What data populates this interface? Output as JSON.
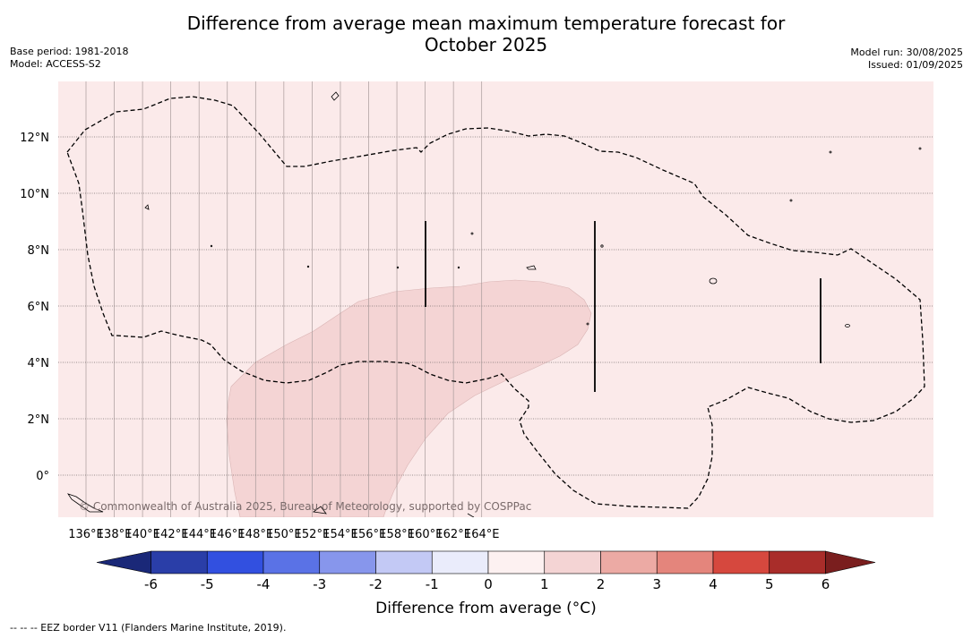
{
  "title": {
    "line1": "Difference from average mean maximum temperature forecast for",
    "line2": "October 2025"
  },
  "meta": {
    "base_period": "Base period: 1981-2018",
    "model": "Model: ACCESS-S2",
    "model_run": "Model run: 30/08/2025",
    "issued": "Issued: 01/09/2025"
  },
  "map": {
    "background_color": "#fbeaea",
    "anomaly_region_color": "#f4d4d4",
    "lon_ticks": [
      "136°E",
      "138°E",
      "140°E",
      "142°E",
      "144°E",
      "146°E",
      "148°E",
      "150°E",
      "152°E",
      "154°E",
      "156°E",
      "158°E",
      "160°E",
      "162°E",
      "164°E"
    ],
    "lat_ticks": [
      "12°N",
      "10°N",
      "8°N",
      "6°N",
      "4°N",
      "2°N",
      "0°"
    ],
    "copyright": "© Commonwealth of Australia 2025, Bureau of Meteorology, supported by COSPPac"
  },
  "colorbar": {
    "label": "Difference from average (°C)",
    "ticks": [
      "-6",
      "-5",
      "-4",
      "-3",
      "-2",
      "-1",
      "0",
      "1",
      "2",
      "3",
      "4",
      "5",
      "6"
    ],
    "colors": [
      "#2a3ea8",
      "#3250e0",
      "#5a72e6",
      "#8796ec",
      "#c3c9f5",
      "#eaecfb",
      "#fdf1f1",
      "#f4d4d4",
      "#ecaaa4",
      "#e4857c",
      "#d6483e",
      "#a92d2a"
    ],
    "low_extend_color": "#1a2878",
    "high_extend_color": "#7a1e1e"
  },
  "footnote": "--  --  -- EEZ border V11 (Flanders Marine Institute, 2019)."
}
